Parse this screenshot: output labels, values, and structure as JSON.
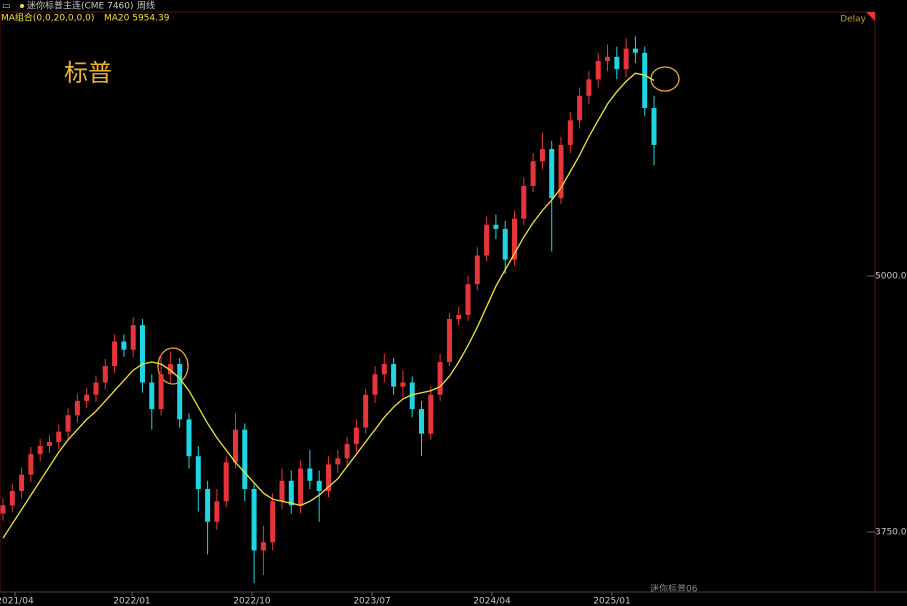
{
  "chart_data": {
    "type": "candlestick",
    "symbol": "迷你标普主连(CME 7460)",
    "period": "周线",
    "indicator": "MA组合(0,0,20,0,0,0)",
    "delay": "Delay",
    "annotation": "标普",
    "watermark": "迷你标普06",
    "up_color": "#e8353b",
    "down_color": "#1fd6e4",
    "open": [
      3840,
      3880,
      3950,
      4030,
      4130,
      4170,
      4190,
      4240,
      4320,
      4390,
      4420,
      4480,
      4560,
      4680,
      4640,
      4760,
      4480,
      4350,
      4520,
      4570,
      4300,
      4120,
      3960,
      3800,
      3900,
      4090,
      4250,
      3960,
      3660,
      3700,
      3900,
      4000,
      3880,
      4060,
      4000,
      3950,
      4080,
      4110,
      4180,
      4260,
      4420,
      4520,
      4570,
      4460,
      4480,
      4350,
      4230,
      4420,
      4580,
      4790,
      4810,
      4960,
      5100,
      5250,
      5230,
      5080,
      5280,
      5440,
      5560,
      5620,
      5380,
      5640,
      5760,
      5880,
      5960,
      6050,
      6070,
      6010,
      6110,
      6090,
      5820
    ],
    "high": [
      3915,
      3985,
      4065,
      4165,
      4205,
      4225,
      4275,
      4355,
      4425,
      4455,
      4515,
      4595,
      4715,
      4715,
      4800,
      4790,
      4520,
      4620,
      4630,
      4600,
      4330,
      4170,
      4000,
      3960,
      4120,
      4330,
      4280,
      3990,
      3780,
      3940,
      4060,
      4050,
      4100,
      4150,
      4050,
      4120,
      4150,
      4215,
      4300,
      4450,
      4560,
      4620,
      4600,
      4540,
      4510,
      4390,
      4460,
      4620,
      4820,
      4850,
      5000,
      5140,
      5290,
      5300,
      5270,
      5320,
      5480,
      5600,
      5700,
      5660,
      5680,
      5800,
      5920,
      6000,
      6090,
      6130,
      6120,
      6160,
      6170,
      6120,
      5880
    ],
    "low": [
      3805,
      3845,
      3915,
      3995,
      4095,
      4135,
      4155,
      4205,
      4285,
      4355,
      4385,
      4445,
      4525,
      4605,
      4605,
      4430,
      4250,
      4320,
      4480,
      4260,
      4060,
      3850,
      3640,
      3760,
      3870,
      4060,
      3900,
      3500,
      3540,
      3660,
      3860,
      3840,
      3840,
      3960,
      3800,
      3920,
      4040,
      4070,
      4140,
      4230,
      4380,
      4480,
      4420,
      4410,
      4310,
      4120,
      4200,
      4390,
      4560,
      4760,
      4780,
      4930,
      5070,
      5180,
      5010,
      5050,
      5250,
      5410,
      5520,
      5120,
      5350,
      5600,
      5720,
      5840,
      5920,
      6000,
      5960,
      5970,
      6040,
      5780,
      5540
    ],
    "close": [
      3880,
      3950,
      4030,
      4130,
      4170,
      4190,
      4240,
      4320,
      4390,
      4420,
      4480,
      4560,
      4680,
      4640,
      4760,
      4480,
      4350,
      4520,
      4570,
      4300,
      4120,
      3960,
      3800,
      3900,
      4090,
      4250,
      3960,
      3660,
      3700,
      3900,
      4000,
      3880,
      4060,
      4000,
      3950,
      4080,
      4110,
      4180,
      4260,
      4420,
      4520,
      4570,
      4460,
      4480,
      4350,
      4230,
      4420,
      4580,
      4790,
      4810,
      4960,
      5100,
      5250,
      5230,
      5080,
      5280,
      5440,
      5560,
      5620,
      5380,
      5640,
      5760,
      5880,
      5960,
      6050,
      6070,
      6010,
      6110,
      6090,
      5820,
      5640
    ],
    "ma": {
      "legend": "MA20 5954.39",
      "color": "#f2e233",
      "values": [
        3720,
        3790,
        3860,
        3930,
        4000,
        4070,
        4140,
        4200,
        4250,
        4300,
        4340,
        4390,
        4440,
        4490,
        4540,
        4570,
        4580,
        4570,
        4540,
        4500,
        4440,
        4360,
        4280,
        4210,
        4150,
        4090,
        4040,
        3990,
        3940,
        3910,
        3900,
        3890,
        3880,
        3900,
        3930,
        3970,
        4010,
        4070,
        4130,
        4190,
        4250,
        4310,
        4360,
        4400,
        4420,
        4430,
        4440,
        4460,
        4510,
        4580,
        4660,
        4750,
        4850,
        4950,
        5030,
        5110,
        5190,
        5260,
        5320,
        5370,
        5430,
        5510,
        5590,
        5680,
        5760,
        5840,
        5900,
        5950,
        5990,
        5980,
        5954.39
      ]
    },
    "xlim": [
      -0.32,
      93.76
    ],
    "xticks": [
      {
        "value": 1.29,
        "label": "2021/04"
      },
      {
        "value": 13.87,
        "label": "2022/01"
      },
      {
        "value": 26.77,
        "label": "2022/10"
      },
      {
        "value": 39.68,
        "label": "2023/07"
      },
      {
        "value": 52.58,
        "label": "2024/04"
      },
      {
        "value": 65.48,
        "label": "2025/01"
      }
    ],
    "ylim": [
      3457,
      6289
    ],
    "yticks": [
      {
        "value": 3750,
        "label": "3750.00"
      },
      {
        "value": 5000,
        "label": "5000.00"
      }
    ]
  }
}
